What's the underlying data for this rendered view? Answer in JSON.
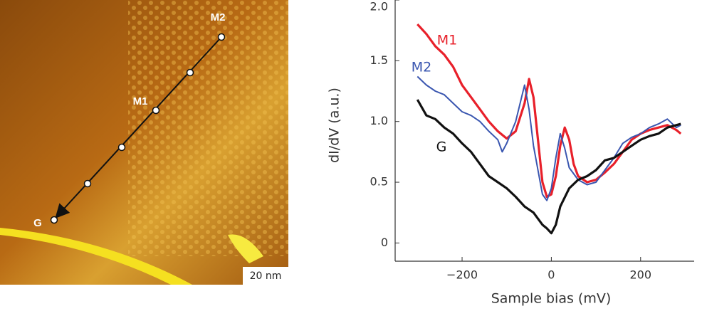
{
  "image": {
    "labels": [
      "M2",
      "M1",
      "G"
    ],
    "scale_bar": "20 nm"
  },
  "chart_data": {
    "type": "line",
    "xlabel": "Sample bias (mV)",
    "ylabel": "dI/dV (a.u.)",
    "xlim": [
      -350,
      320
    ],
    "ylim": [
      -0.15,
      2.0
    ],
    "xticks": [
      {
        "value": -200,
        "label": "−200"
      },
      0,
      200
    ],
    "yticks": [
      0,
      0.5,
      {
        "value": 1,
        "label": "1.0"
      },
      1.5,
      {
        "value": 2,
        "label": "2.0"
      }
    ],
    "series": [
      {
        "name": "M1",
        "color": "#e8202a",
        "x": [
          -300,
          -280,
          -260,
          -240,
          -220,
          -200,
          -180,
          -160,
          -140,
          -120,
          -100,
          -80,
          -60,
          -50,
          -40,
          -30,
          -20,
          -10,
          0,
          10,
          20,
          30,
          40,
          50,
          60,
          80,
          100,
          120,
          140,
          160,
          180,
          200,
          220,
          240,
          260,
          280,
          290
        ],
        "values": [
          1.8,
          1.72,
          1.62,
          1.55,
          1.45,
          1.3,
          1.2,
          1.1,
          1.0,
          0.92,
          0.86,
          0.92,
          1.15,
          1.35,
          1.2,
          0.85,
          0.5,
          0.38,
          0.4,
          0.55,
          0.8,
          0.95,
          0.85,
          0.65,
          0.55,
          0.5,
          0.52,
          0.58,
          0.65,
          0.75,
          0.85,
          0.9,
          0.93,
          0.95,
          0.97,
          0.93,
          0.9
        ]
      },
      {
        "name": "M2",
        "color": "#3a56b0",
        "x": [
          -300,
          -280,
          -260,
          -240,
          -220,
          -200,
          -180,
          -160,
          -140,
          -120,
          -110,
          -100,
          -80,
          -60,
          -50,
          -40,
          -30,
          -20,
          -10,
          0,
          10,
          20,
          30,
          40,
          60,
          80,
          100,
          120,
          140,
          160,
          180,
          200,
          220,
          240,
          260,
          280,
          290
        ],
        "values": [
          1.37,
          1.3,
          1.25,
          1.22,
          1.15,
          1.08,
          1.05,
          1.0,
          0.92,
          0.85,
          0.75,
          0.82,
          1.0,
          1.3,
          1.1,
          0.8,
          0.6,
          0.4,
          0.35,
          0.45,
          0.7,
          0.9,
          0.78,
          0.62,
          0.52,
          0.48,
          0.5,
          0.6,
          0.7,
          0.82,
          0.87,
          0.9,
          0.95,
          0.98,
          1.02,
          0.95,
          0.97
        ]
      },
      {
        "name": "G",
        "color": "#111111",
        "x": [
          -300,
          -280,
          -260,
          -240,
          -220,
          -200,
          -180,
          -160,
          -140,
          -120,
          -100,
          -80,
          -60,
          -40,
          -20,
          -10,
          0,
          10,
          20,
          40,
          60,
          80,
          100,
          120,
          140,
          160,
          180,
          200,
          220,
          240,
          260,
          280,
          290
        ],
        "values": [
          1.18,
          1.05,
          1.02,
          0.95,
          0.9,
          0.82,
          0.75,
          0.65,
          0.55,
          0.5,
          0.45,
          0.38,
          0.3,
          0.25,
          0.15,
          0.12,
          0.08,
          0.15,
          0.3,
          0.45,
          0.52,
          0.55,
          0.6,
          0.68,
          0.7,
          0.75,
          0.8,
          0.85,
          0.88,
          0.9,
          0.95,
          0.97,
          0.98
        ]
      }
    ]
  }
}
